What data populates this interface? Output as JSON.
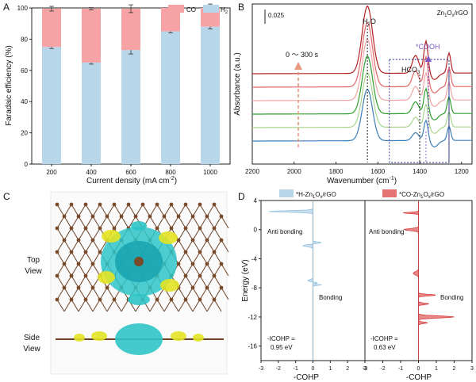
{
  "panel_letters": {
    "a": "A",
    "b": "B",
    "c": "C",
    "d": "D"
  },
  "chart_data": [
    {
      "panel": "A",
      "type": "bar",
      "stacked": true,
      "categories": [
        "200",
        "400",
        "600",
        "800",
        "1000"
      ],
      "series": [
        {
          "name": "H2",
          "values": [
            75,
            65,
            73,
            85,
            88
          ],
          "errors": [
            1,
            1,
            2.5,
            1,
            1.5
          ],
          "color": "#b8d6ea"
        },
        {
          "name": "CO",
          "values": [
            24.5,
            34.5,
            26.5,
            15,
            12
          ],
          "errors": [
            1.5,
            0.7,
            2.5,
            1,
            2.5
          ],
          "color": "#f7a3a6"
        }
      ],
      "legend_labels": [
        "CO",
        "H",
        "2"
      ],
      "xlabel": "Current density (mA cm",
      "xlabel_sup": "-2",
      "xlabel_end": ")",
      "ylabel": "Faradaic efficiency (%)",
      "ylim": [
        0,
        100
      ],
      "yticks": [
        "0",
        "20",
        "40",
        "60",
        "80",
        "100"
      ]
    },
    {
      "panel": "B",
      "type": "line",
      "title_main": "Zn",
      "title_sub1": "1",
      "title_mid": "O",
      "title_sub2": "x",
      "title_end": "/rGO",
      "xlabel": "Wavenumber (cm",
      "xlabel_sup": "-1",
      "xlabel_end": ")",
      "ylabel": "Absorbance (a.u.)",
      "xlim": [
        2200,
        1150
      ],
      "xticks": [
        "2200",
        "2000",
        "1800",
        "1600",
        "1400",
        "1200"
      ],
      "scale_bar": "0.025",
      "time_label": "0 ～ 300 s",
      "peak_labels": {
        "h2o_a": "H",
        "h2o_b": "2",
        "h2o_c": "O",
        "hco3_a": "HCO",
        "hco3_b": "3",
        "hco3_c": "-",
        "cooh": "*COOH"
      },
      "peak_positions": {
        "h2o": 1650,
        "hco3": 1400,
        "cooh": 1370,
        "right": 1260
      },
      "series_colors": [
        "#3b7fb8",
        "#a7d48b",
        "#2e9e2e",
        "#f1a5a5",
        "#e06666",
        "#b22222"
      ]
    },
    {
      "panel": "D",
      "type": "line",
      "legend": [
        {
          "pre": "*H-Zn",
          "sub1": "1",
          "mid": "O",
          "sub2": "x",
          "end": "/rGO",
          "color": "#b8d6ea"
        },
        {
          "pre": "*CO-Zn",
          "sub1": "1",
          "mid": "O",
          "sub2": "x",
          "end": "/rGO",
          "color": "#e57373"
        }
      ],
      "ylabel": "Energy (eV)",
      "ylim": [
        -18,
        4
      ],
      "yticks": [
        "4",
        "0",
        "-4",
        "-8",
        "-12",
        "-16"
      ],
      "xlabel": "-COHP",
      "xlim": [
        -3,
        3
      ],
      "xticks": [
        "-3",
        "-2",
        "-1",
        "0",
        "1",
        "2",
        "3"
      ],
      "left_panel": {
        "anti": "Anti bonding",
        "bonding": "Bonding",
        "icohp_label": "-ICOHP =",
        "icohp_value": "0.95 eV"
      },
      "right_panel": {
        "anti": "Anti bonding",
        "bonding": "Bonding",
        "icohp_label": "-ICOHP =",
        "icohp_value": "0.63 eV"
      }
    }
  ],
  "panel_c": {
    "top_label_1": "Top",
    "top_label_2": "View",
    "side_label_1": "Side",
    "side_label_2": "View"
  }
}
